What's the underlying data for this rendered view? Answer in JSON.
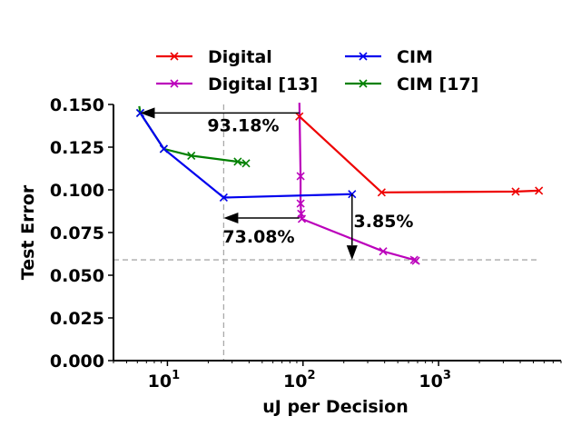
{
  "chart_data": {
    "type": "line",
    "xscale": "log",
    "xlabel": "uJ per Decision",
    "ylabel": "Test Error",
    "xlim": [
      4,
      8000
    ],
    "ylim": [
      0.0,
      0.15
    ],
    "grid": false,
    "legend_placement": "top",
    "xticks": [
      {
        "value": 10,
        "label": "10",
        "sup": "1"
      },
      {
        "value": 100,
        "label": "10",
        "sup": "2"
      },
      {
        "value": 1000,
        "label": "10",
        "sup": "3"
      }
    ],
    "yticks": [
      {
        "value": 0.0,
        "label": "0.000"
      },
      {
        "value": 0.025,
        "label": "0.025"
      },
      {
        "value": 0.05,
        "label": "0.050"
      },
      {
        "value": 0.075,
        "label": "0.075"
      },
      {
        "value": 0.1,
        "label": "0.100"
      },
      {
        "value": 0.125,
        "label": "0.125"
      },
      {
        "value": 0.15,
        "label": "0.150"
      }
    ],
    "series": [
      {
        "name": "Digital",
        "color": "#ee0000",
        "marker": "x",
        "points": [
          [
            94,
            0.143
          ],
          [
            380,
            0.0985
          ],
          [
            3700,
            0.099
          ],
          [
            5500,
            0.0995
          ]
        ]
      },
      {
        "name": "Digital [13]",
        "color": "#bb00bb",
        "marker": "x",
        "points": [
          [
            94,
            0.151
          ],
          [
            96,
            0.108
          ],
          [
            96,
            0.092
          ],
          [
            97,
            0.086
          ],
          [
            98,
            0.083
          ],
          [
            390,
            0.064
          ],
          [
            660,
            0.059
          ],
          [
            680,
            0.0585
          ]
        ]
      },
      {
        "name": "CIM",
        "color": "#0000ee",
        "marker": "x",
        "points": [
          [
            6.3,
            0.145
          ],
          [
            9.4,
            0.124
          ],
          [
            26,
            0.0955
          ],
          [
            230,
            0.0975
          ]
        ]
      },
      {
        "name": "CIM [17]",
        "color": "#008000",
        "marker": "x",
        "points": [
          [
            6.2,
            0.149
          ],
          [
            6.3,
            0.145
          ],
          [
            9.4,
            0.124
          ],
          [
            15,
            0.12
          ],
          [
            33,
            0.1165
          ],
          [
            38,
            0.1155
          ]
        ]
      }
    ],
    "reference_lines": [
      {
        "orientation": "horizontal",
        "value": 0.059,
        "style": "dashed",
        "color": "#aaaaaa"
      },
      {
        "orientation": "vertical",
        "value": 26,
        "style": "dashed",
        "color": "#aaaaaa"
      }
    ],
    "annotations": [
      {
        "text": "93.18%",
        "arrow_from": [
          94,
          0.145
        ],
        "arrow_to": [
          6.3,
          0.145
        ],
        "text_at": [
          20,
          0.138
        ]
      },
      {
        "text": "73.08%",
        "arrow_from": [
          94,
          0.0835
        ],
        "arrow_to": [
          26,
          0.0835
        ],
        "text_at": [
          26,
          0.073
        ]
      },
      {
        "text": "3.85%",
        "arrow_from": [
          230,
          0.0975
        ],
        "arrow_to": [
          230,
          0.059
        ],
        "text_at": [
          240,
          0.082
        ]
      }
    ]
  }
}
